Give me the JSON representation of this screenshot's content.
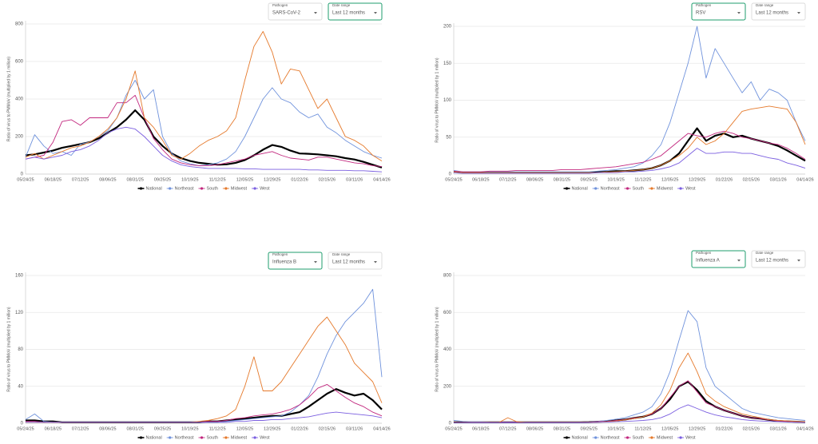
{
  "chart_data": [
    {
      "type": "line",
      "pathogen_label": "Pathogen",
      "pathogen": "SARS-CoV-2",
      "date_range_label": "Date range",
      "date_range": "Last 12 months",
      "focused_control": "date_range",
      "y_label": "Ratio of virus to PMMoV (multiplied by 1 million)",
      "categories": [
        "05/24/25",
        null,
        null,
        "06/18/25",
        null,
        null,
        "07/12/25",
        null,
        null,
        "08/06/25",
        null,
        null,
        "08/31/25",
        null,
        null,
        "09/25/25",
        null,
        null,
        "10/19/25",
        null,
        null,
        "11/12/25",
        null,
        null,
        "12/05/25",
        null,
        null,
        "12/29/25",
        null,
        null,
        "01/22/26",
        null,
        null,
        "02/15/26",
        null,
        null,
        "03/11/26",
        null,
        null,
        "04/14/26"
      ],
      "ylim": [
        0,
        800
      ],
      "yticks": [
        0,
        200,
        400,
        600,
        800
      ],
      "grid": true,
      "series": [
        {
          "name": "National",
          "color": "#000000",
          "values": [
            100,
            105,
            115,
            125,
            140,
            150,
            160,
            170,
            190,
            220,
            250,
            290,
            340,
            290,
            200,
            150,
            110,
            85,
            70,
            60,
            55,
            50,
            52,
            60,
            75,
            100,
            130,
            155,
            145,
            125,
            110,
            108,
            105,
            100,
            95,
            85,
            78,
            65,
            50,
            35
          ]
        },
        {
          "name": "Northeast",
          "color": "#6f92dc",
          "values": [
            90,
            210,
            150,
            110,
            120,
            100,
            160,
            170,
            200,
            230,
            300,
            420,
            500,
            400,
            450,
            200,
            110,
            70,
            55,
            45,
            50,
            60,
            80,
            120,
            200,
            300,
            400,
            460,
            400,
            380,
            330,
            300,
            320,
            250,
            220,
            180,
            150,
            120,
            100,
            85
          ]
        },
        {
          "name": "South",
          "color": "#c2277e",
          "values": [
            80,
            90,
            100,
            170,
            280,
            290,
            260,
            300,
            300,
            300,
            380,
            380,
            420,
            300,
            190,
            130,
            80,
            60,
            50,
            45,
            45,
            50,
            60,
            70,
            80,
            100,
            110,
            120,
            100,
            85,
            80,
            75,
            90,
            90,
            80,
            70,
            60,
            55,
            45,
            40
          ]
        },
        {
          "name": "Midwest",
          "color": "#e5792b",
          "values": [
            90,
            110,
            80,
            100,
            120,
            140,
            150,
            170,
            200,
            240,
            300,
            400,
            550,
            300,
            250,
            180,
            100,
            80,
            110,
            150,
            180,
            200,
            230,
            300,
            500,
            680,
            760,
            650,
            480,
            560,
            550,
            450,
            350,
            400,
            300,
            200,
            180,
            150,
            100,
            70
          ]
        },
        {
          "name": "West",
          "color": "#7b5fe0",
          "values": [
            80,
            90,
            80,
            90,
            100,
            120,
            130,
            150,
            180,
            220,
            240,
            250,
            240,
            200,
            150,
            100,
            70,
            50,
            40,
            35,
            30,
            30,
            30,
            30,
            28,
            28,
            25,
            25,
            25,
            25,
            25,
            22,
            22,
            20,
            20,
            20,
            18,
            18,
            15,
            12
          ]
        }
      ]
    },
    {
      "type": "line",
      "pathogen_label": "Pathogen",
      "pathogen": "RSV",
      "date_range_label": "Date range",
      "date_range": "Last 12 months",
      "focused_control": "pathogen",
      "y_label": "Ratio of virus to PMMoV (multiplied by 1 million)",
      "categories": [
        "05/24/25",
        null,
        null,
        "06/18/25",
        null,
        null,
        "07/12/25",
        null,
        null,
        "08/06/25",
        null,
        null,
        "08/31/25",
        null,
        null,
        "09/25/25",
        null,
        null,
        "10/19/25",
        null,
        null,
        "11/12/25",
        null,
        null,
        "12/05/25",
        null,
        null,
        "12/29/25",
        null,
        null,
        "01/22/26",
        null,
        null,
        "02/15/26",
        null,
        null,
        "03/11/26",
        null,
        null,
        "04/14/26"
      ],
      "ylim": [
        0,
        200
      ],
      "yticks": [
        0,
        50,
        100,
        150,
        200
      ],
      "grid": true,
      "series": [
        {
          "name": "National",
          "color": "#000000",
          "values": [
            3,
            2,
            2,
            2,
            2,
            2,
            2,
            2,
            2,
            2,
            2,
            2,
            2,
            2,
            2,
            2,
            3,
            3,
            4,
            4,
            5,
            6,
            8,
            12,
            18,
            28,
            45,
            62,
            45,
            52,
            55,
            50,
            52,
            48,
            45,
            42,
            38,
            32,
            25,
            18
          ]
        },
        {
          "name": "Northeast",
          "color": "#6f92dc",
          "values": [
            5,
            3,
            3,
            3,
            3,
            3,
            3,
            3,
            3,
            3,
            3,
            3,
            3,
            3,
            3,
            3,
            4,
            5,
            6,
            8,
            10,
            15,
            25,
            40,
            70,
            110,
            150,
            200,
            130,
            170,
            150,
            130,
            110,
            125,
            100,
            115,
            110,
            100,
            70,
            45
          ]
        },
        {
          "name": "South",
          "color": "#c2277e",
          "values": [
            4,
            3,
            3,
            3,
            4,
            4,
            4,
            5,
            5,
            5,
            5,
            5,
            6,
            6,
            6,
            7,
            8,
            9,
            10,
            12,
            14,
            16,
            20,
            25,
            35,
            45,
            55,
            52,
            50,
            55,
            58,
            55,
            50,
            48,
            45,
            42,
            40,
            35,
            28,
            20
          ]
        },
        {
          "name": "Midwest",
          "color": "#e5792b",
          "values": [
            3,
            2,
            2,
            2,
            2,
            2,
            2,
            2,
            2,
            2,
            2,
            2,
            2,
            2,
            2,
            2,
            2,
            3,
            3,
            4,
            5,
            6,
            8,
            12,
            18,
            25,
            35,
            50,
            40,
            45,
            55,
            70,
            85,
            88,
            90,
            92,
            90,
            88,
            70,
            40
          ]
        },
        {
          "name": "West",
          "color": "#7b5fe0",
          "values": [
            2,
            1,
            1,
            1,
            1,
            1,
            1,
            1,
            1,
            1,
            1,
            1,
            1,
            1,
            1,
            1,
            2,
            2,
            2,
            3,
            3,
            4,
            5,
            7,
            10,
            15,
            25,
            35,
            28,
            28,
            30,
            30,
            28,
            28,
            25,
            22,
            20,
            15,
            12,
            8
          ]
        }
      ]
    },
    {
      "type": "line",
      "pathogen_label": "Pathogen",
      "pathogen": "Influenza B",
      "date_range_label": "Date range",
      "date_range": "Last 12 months",
      "focused_control": "pathogen",
      "y_label": "Ratio of virus to PMMoV (multiplied by 1 million)",
      "categories": [
        "05/24/25",
        null,
        null,
        "06/18/25",
        null,
        null,
        "07/12/25",
        null,
        null,
        "08/06/25",
        null,
        null,
        "08/31/25",
        null,
        null,
        "09/25/25",
        null,
        null,
        "10/19/25",
        null,
        null,
        "11/12/25",
        null,
        null,
        "12/05/25",
        null,
        null,
        "12/29/25",
        null,
        null,
        "01/22/26",
        null,
        null,
        "02/15/26",
        null,
        null,
        "03/11/26",
        null,
        null,
        "04/14/26"
      ],
      "ylim": [
        0,
        160
      ],
      "yticks": [
        0,
        40,
        80,
        120,
        160
      ],
      "grid": true,
      "series": [
        {
          "name": "National",
          "color": "#000000",
          "values": [
            3,
            3,
            2,
            2,
            1,
            1,
            1,
            1,
            1,
            1,
            1,
            1,
            1,
            1,
            1,
            1,
            1,
            1,
            1,
            1,
            2,
            2,
            3,
            4,
            5,
            6,
            7,
            8,
            8,
            10,
            12,
            18,
            25,
            32,
            37,
            33,
            30,
            32,
            25,
            15
          ]
        },
        {
          "name": "Northeast",
          "color": "#6f92dc",
          "values": [
            4,
            10,
            2,
            1,
            1,
            1,
            1,
            1,
            1,
            1,
            1,
            1,
            1,
            1,
            1,
            1,
            1,
            1,
            1,
            1,
            1,
            1,
            2,
            3,
            4,
            5,
            6,
            7,
            8,
            12,
            20,
            30,
            50,
            75,
            95,
            110,
            120,
            130,
            145,
            50
          ]
        },
        {
          "name": "South",
          "color": "#c2277e",
          "values": [
            2,
            2,
            1,
            1,
            1,
            1,
            1,
            1,
            1,
            1,
            1,
            1,
            1,
            1,
            1,
            1,
            1,
            1,
            1,
            1,
            2,
            2,
            3,
            5,
            6,
            8,
            9,
            10,
            12,
            15,
            20,
            28,
            38,
            42,
            35,
            28,
            22,
            18,
            12,
            8
          ]
        },
        {
          "name": "Midwest",
          "color": "#e5792b",
          "values": [
            1,
            1,
            1,
            1,
            1,
            1,
            1,
            1,
            1,
            1,
            1,
            1,
            1,
            1,
            1,
            1,
            1,
            1,
            1,
            2,
            3,
            5,
            8,
            15,
            40,
            72,
            35,
            35,
            45,
            60,
            75,
            90,
            105,
            115,
            100,
            85,
            65,
            55,
            45,
            22
          ]
        },
        {
          "name": "West",
          "color": "#7b5fe0",
          "values": [
            1,
            1,
            1,
            1,
            1,
            1,
            1,
            1,
            1,
            1,
            1,
            1,
            1,
            1,
            1,
            1,
            1,
            1,
            1,
            1,
            1,
            1,
            1,
            2,
            2,
            3,
            3,
            4,
            4,
            5,
            6,
            7,
            9,
            11,
            12,
            11,
            10,
            9,
            8,
            6
          ]
        }
      ]
    },
    {
      "type": "line",
      "pathogen_label": "Pathogen",
      "pathogen": "Influenza A",
      "date_range_label": "Date range",
      "date_range": "Last 12 months",
      "focused_control": "pathogen",
      "y_label": "Ratio of virus to PMMoV (multiplied by 1 million)",
      "categories": [
        "05/24/25",
        null,
        null,
        "06/18/25",
        null,
        null,
        "07/12/25",
        null,
        null,
        "08/06/25",
        null,
        null,
        "08/31/25",
        null,
        null,
        "09/25/25",
        null,
        null,
        "10/19/25",
        null,
        null,
        "11/12/25",
        null,
        null,
        "12/05/25",
        null,
        null,
        "12/29/25",
        null,
        null,
        "01/22/26",
        null,
        null,
        "02/15/26",
        null,
        null,
        "03/11/26",
        null,
        null,
        "04/14/26"
      ],
      "ylim": [
        0,
        800
      ],
      "yticks": [
        0,
        200,
        400,
        600,
        800
      ],
      "grid": true,
      "series": [
        {
          "name": "National",
          "color": "#000000",
          "values": [
            5,
            5,
            5,
            5,
            5,
            5,
            5,
            5,
            5,
            5,
            5,
            5,
            5,
            5,
            5,
            6,
            8,
            10,
            15,
            20,
            28,
            35,
            50,
            80,
            130,
            200,
            225,
            180,
            120,
            90,
            70,
            55,
            40,
            30,
            25,
            18,
            12,
            10,
            8,
            6
          ]
        },
        {
          "name": "Northeast",
          "color": "#6f92dc",
          "values": [
            15,
            10,
            8,
            8,
            6,
            6,
            6,
            6,
            6,
            6,
            6,
            6,
            6,
            6,
            6,
            7,
            10,
            15,
            22,
            30,
            45,
            60,
            90,
            160,
            280,
            450,
            610,
            550,
            300,
            200,
            160,
            120,
            80,
            60,
            50,
            40,
            30,
            25,
            20,
            15
          ]
        },
        {
          "name": "South",
          "color": "#c2277e",
          "values": [
            5,
            5,
            5,
            5,
            5,
            5,
            5,
            5,
            5,
            5,
            5,
            5,
            5,
            5,
            5,
            6,
            8,
            10,
            15,
            20,
            28,
            35,
            50,
            80,
            140,
            200,
            230,
            170,
            110,
            90,
            70,
            55,
            40,
            30,
            25,
            18,
            12,
            10,
            8,
            6
          ]
        },
        {
          "name": "Midwest",
          "color": "#e5792b",
          "values": [
            4,
            4,
            4,
            4,
            4,
            4,
            30,
            8,
            4,
            4,
            4,
            4,
            4,
            4,
            4,
            5,
            6,
            8,
            12,
            18,
            25,
            35,
            55,
            100,
            180,
            300,
            380,
            280,
            160,
            120,
            90,
            70,
            50,
            40,
            30,
            20,
            15,
            12,
            10,
            8
          ]
        },
        {
          "name": "West",
          "color": "#7b5fe0",
          "values": [
            3,
            3,
            3,
            3,
            3,
            3,
            3,
            3,
            3,
            3,
            3,
            3,
            3,
            3,
            3,
            4,
            5,
            6,
            8,
            10,
            12,
            15,
            20,
            30,
            50,
            80,
            100,
            80,
            60,
            45,
            35,
            28,
            20,
            15,
            12,
            10,
            8,
            6,
            5,
            4
          ]
        }
      ]
    }
  ]
}
